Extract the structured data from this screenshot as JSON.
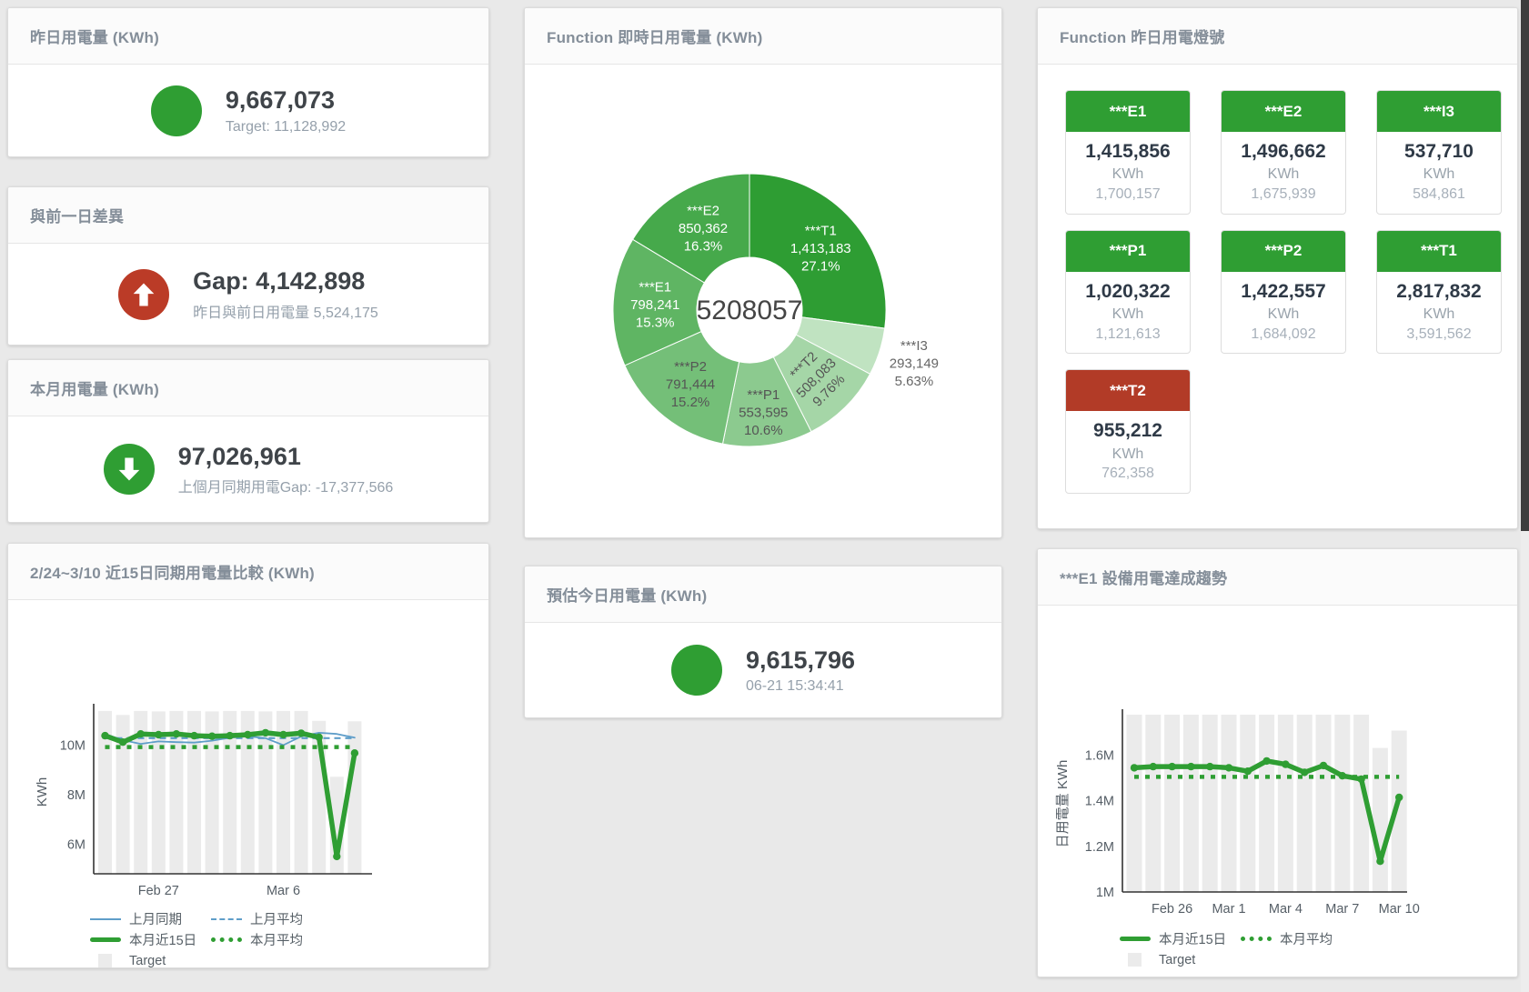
{
  "colors": {
    "green": "#2f9e33",
    "red": "#b73b28",
    "blue": "#5f9ec9",
    "target_bar": "#ebebeb",
    "axis": "#333333",
    "status": {
      "ok": "#2f9e33",
      "alert": "#b23b27"
    }
  },
  "panels": {
    "yesterday": {
      "title": "昨日用電量 (KWh)",
      "value": "9,667,073",
      "subtitle": "Target: 11,128,992",
      "status_color": "#2f9e33"
    },
    "gap_prev_day": {
      "title": "與前一日差異",
      "value": "Gap: 4,142,898",
      "subtitle": "昨日與前日用電量 5,524,175",
      "status_color": "#bb3b27"
    },
    "month_usage": {
      "title": "本月用電量 (KWh)",
      "value": "97,026,961",
      "subtitle": "上個月同期用電Gap: -17,377,566",
      "status_color": "#2f9e33"
    },
    "today_estimate": {
      "title": "預估今日用電量 (KWh)",
      "value": "9,615,796",
      "subtitle": "06-21 15:34:41",
      "status_color": "#2f9e33"
    },
    "realtime_donut": {
      "title": "Function 即時日用電量 (KWh)"
    },
    "yesterday_lights": {
      "title": "Function 昨日用電燈號",
      "tiles": [
        {
          "name": "***E1",
          "value": "1,415,856",
          "unit": "KWh",
          "target": "1,700,157",
          "status": "ok"
        },
        {
          "name": "***E2",
          "value": "1,496,662",
          "unit": "KWh",
          "target": "1,675,939",
          "status": "ok"
        },
        {
          "name": "***I3",
          "value": "537,710",
          "unit": "KWh",
          "target": "584,861",
          "status": "ok"
        },
        {
          "name": "***P1",
          "value": "1,020,322",
          "unit": "KWh",
          "target": "1,121,613",
          "status": "ok"
        },
        {
          "name": "***P2",
          "value": "1,422,557",
          "unit": "KWh",
          "target": "1,684,092",
          "status": "ok"
        },
        {
          "name": "***T1",
          "value": "2,817,832",
          "unit": "KWh",
          "target": "3,591,562",
          "status": "ok"
        },
        {
          "name": "***T2",
          "value": "955,212",
          "unit": "KWh",
          "target": "762,358",
          "status": "alert"
        }
      ]
    },
    "compare_chart": {
      "title": "2/24~3/10 近15日同期用電量比較 (KWh)"
    },
    "e1_trend": {
      "title": "***E1 設備用電達成趨勢"
    }
  },
  "chart_data": [
    {
      "id": "donut",
      "type": "pie",
      "title": "Function 即時日用電量 (KWh)",
      "center_total": "5208057",
      "slices": [
        {
          "name": "***T1",
          "value": 1413183,
          "display": "1,413,183",
          "pct": "27.1%",
          "color": "#2e9d33",
          "label_color": "#ffffff",
          "label_pos": "inside"
        },
        {
          "name": "***I3",
          "value": 293149,
          "display": "293,149",
          "pct": "5.63%",
          "color": "#c0e3c1",
          "label_color": "#666666",
          "label_pos": "outside"
        },
        {
          "name": "***T2",
          "value": 508083,
          "display": "508,083",
          "pct": "9.76%",
          "color": "#a5d6a7",
          "label_color": "#555555",
          "label_pos": "inside",
          "rotate": -45
        },
        {
          "name": "***P1",
          "value": 553595,
          "display": "553,595",
          "pct": "10.6%",
          "color": "#8cca8f",
          "label_color": "#555555",
          "label_pos": "inside",
          "lr": 113
        },
        {
          "name": "***P2",
          "value": 791444,
          "display": "791,444",
          "pct": "15.2%",
          "color": "#74bf78",
          "label_color": "#555555",
          "label_pos": "inside"
        },
        {
          "name": "***E1",
          "value": 798241,
          "display": "798,241",
          "pct": "15.3%",
          "color": "#5fb563",
          "label_color": "#ffffff",
          "label_pos": "inside"
        },
        {
          "name": "***E2",
          "value": 850362,
          "display": "850,362",
          "pct": "16.3%",
          "color": "#46a94b",
          "label_color": "#ffffff",
          "label_pos": "inside"
        }
      ]
    },
    {
      "id": "compare",
      "type": "bar+line",
      "title": "2/24~3/10 近15日同期用電量比較 (KWh)",
      "ylabel": "KWh",
      "unit": "M",
      "categories": [
        "2/24",
        "2/25",
        "2/26",
        "2/27",
        "2/28",
        "3/1",
        "3/2",
        "3/3",
        "3/4",
        "3/5",
        "3/6",
        "3/7",
        "3/8",
        "3/9",
        "3/10"
      ],
      "ylim": [
        4.8,
        11.45
      ],
      "yticks": [
        {
          "v": 6,
          "label": "6M"
        },
        {
          "v": 8,
          "label": "8M"
        },
        {
          "v": 10,
          "label": "10M"
        }
      ],
      "xticks": [
        {
          "i": 3,
          "label": "Feb 27"
        },
        {
          "i": 10,
          "label": "Mar 6"
        }
      ],
      "bars": {
        "name": "Target",
        "color": "#ebebeb",
        "values": [
          11.38,
          11.22,
          11.38,
          11.36,
          11.38,
          11.38,
          11.36,
          11.38,
          11.38,
          11.36,
          11.38,
          11.38,
          10.98,
          8.72,
          10.96
        ]
      },
      "lines": [
        {
          "name": "上月同期",
          "color": "#5f9ec9",
          "width": 1.8,
          "values": [
            10.45,
            10.2,
            10.05,
            10.15,
            10.12,
            10.1,
            10.18,
            10.3,
            10.35,
            10.28,
            10.0,
            10.35,
            10.5,
            10.45,
            10.3
          ]
        },
        {
          "name": "上月平均",
          "color": "#5f9ec9",
          "width": 2.2,
          "dash": "7 5",
          "const": 10.28
        },
        {
          "name": "本月近15日",
          "color": "#2f9e33",
          "width": 5.5,
          "markers": true,
          "values": [
            10.38,
            10.12,
            10.45,
            10.42,
            10.45,
            10.38,
            10.36,
            10.38,
            10.42,
            10.5,
            10.42,
            10.48,
            10.32,
            5.5,
            9.68
          ]
        },
        {
          "name": "本月平均",
          "color": "#2f9e33",
          "width": 4.5,
          "dash": "5 7",
          "const": 9.92
        }
      ],
      "legend_rows": [
        [
          {
            "swatch": "blue-line",
            "label": "上月同期"
          },
          {
            "swatch": "blue-dash",
            "label": "上月平均"
          }
        ],
        [
          {
            "swatch": "green-thick",
            "label": "本月近15日"
          },
          {
            "swatch": "green-dot",
            "label": "本月平均"
          }
        ],
        [
          {
            "swatch": "gray-square",
            "label": "Target"
          }
        ]
      ]
    },
    {
      "id": "trend",
      "type": "bar+line",
      "title": "***E1 設備用電達成趨勢",
      "ylabel": "日用電量 KWh",
      "unit": "M",
      "categories": [
        "2/24",
        "2/25",
        "2/26",
        "2/27",
        "2/28",
        "3/1",
        "3/2",
        "3/3",
        "3/4",
        "3/5",
        "3/6",
        "3/7",
        "3/8",
        "3/9",
        "3/10"
      ],
      "ylim": [
        1.0,
        1.778
      ],
      "yticks": [
        {
          "v": 1,
          "label": "1M"
        },
        {
          "v": 1.2,
          "label": "1.2M"
        },
        {
          "v": 1.4,
          "label": "1.4M"
        },
        {
          "v": 1.6,
          "label": "1.6M"
        }
      ],
      "xticks": [
        {
          "i": 2,
          "label": "Feb 26"
        },
        {
          "i": 5,
          "label": "Mar 1"
        },
        {
          "i": 8,
          "label": "Mar 4"
        },
        {
          "i": 11,
          "label": "Mar 7"
        },
        {
          "i": 14,
          "label": "Mar 10"
        }
      ],
      "bars": {
        "name": "Target",
        "color": "#ebebeb",
        "values": [
          1.778,
          1.778,
          1.778,
          1.778,
          1.778,
          1.778,
          1.778,
          1.778,
          1.778,
          1.778,
          1.778,
          1.778,
          1.778,
          1.632,
          1.708
        ]
      },
      "lines": [
        {
          "name": "本月近15日",
          "color": "#2f9e33",
          "width": 5.5,
          "markers": true,
          "values": [
            1.545,
            1.55,
            1.55,
            1.55,
            1.55,
            1.545,
            1.53,
            1.575,
            1.56,
            1.525,
            1.555,
            1.51,
            1.495,
            1.135,
            1.415
          ]
        },
        {
          "name": "本月平均",
          "color": "#2f9e33",
          "width": 4.5,
          "dash": "5 7",
          "const": 1.505
        }
      ],
      "legend_rows": [
        [
          {
            "swatch": "green-thick",
            "label": "本月近15日"
          },
          {
            "swatch": "green-dot",
            "label": "本月平均"
          }
        ],
        [
          {
            "swatch": "gray-square",
            "label": "Target"
          }
        ]
      ]
    }
  ]
}
